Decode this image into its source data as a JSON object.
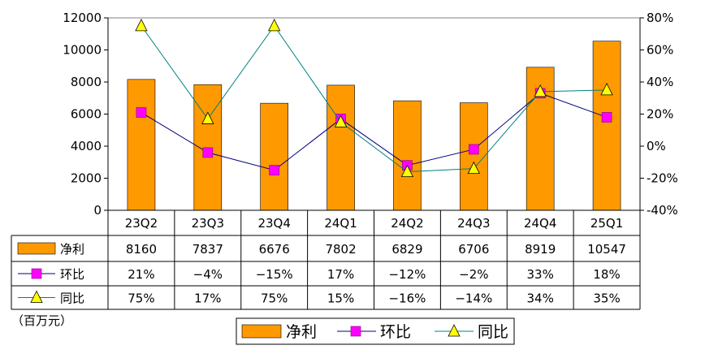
{
  "chart_data": {
    "type": "bar",
    "categories": [
      "23Q2",
      "23Q3",
      "23Q4",
      "24Q1",
      "24Q2",
      "24Q3",
      "24Q4",
      "25Q1"
    ],
    "series": [
      {
        "name": "净利",
        "kind": "bar",
        "axis": "left",
        "values": [
          8160,
          7837,
          6676,
          7802,
          6829,
          6706,
          8919,
          10547
        ],
        "labels": [
          "8160",
          "7837",
          "6676",
          "7802",
          "6829",
          "6706",
          "8919",
          "10547"
        ],
        "color": "#FF9900"
      },
      {
        "name": "环比",
        "kind": "line",
        "axis": "right",
        "marker": "square",
        "values": [
          21,
          -4,
          -15,
          17,
          -12,
          -2,
          33,
          18
        ],
        "labels": [
          "21%",
          "-4%",
          "-15%",
          "17%",
          "-12%",
          "-2%",
          "33%",
          "18%"
        ],
        "color": "#FF00FF",
        "line_color": "#000080"
      },
      {
        "name": "同比",
        "kind": "line",
        "axis": "right",
        "marker": "triangle",
        "values": [
          75,
          17,
          75,
          15,
          -16,
          -14,
          34,
          35
        ],
        "labels": [
          "75%",
          "17%",
          "75%",
          "15%",
          "-16%",
          "-14%",
          "34%",
          "35%"
        ],
        "color": "#FFFF00",
        "line_color": "#008080"
      }
    ],
    "y_left": {
      "min": 0,
      "max": 12000,
      "step": 2000,
      "ticks": [
        "0",
        "2000",
        "4000",
        "6000",
        "8000",
        "10000",
        "12000"
      ]
    },
    "y_right": {
      "min": -40,
      "max": 80,
      "step": 20,
      "ticks": [
        "-40%",
        "-20%",
        "0%",
        "20%",
        "40%",
        "60%",
        "80%"
      ]
    },
    "unit_label": "（百万元）",
    "legend": [
      "净利",
      "环比",
      "同比"
    ]
  }
}
